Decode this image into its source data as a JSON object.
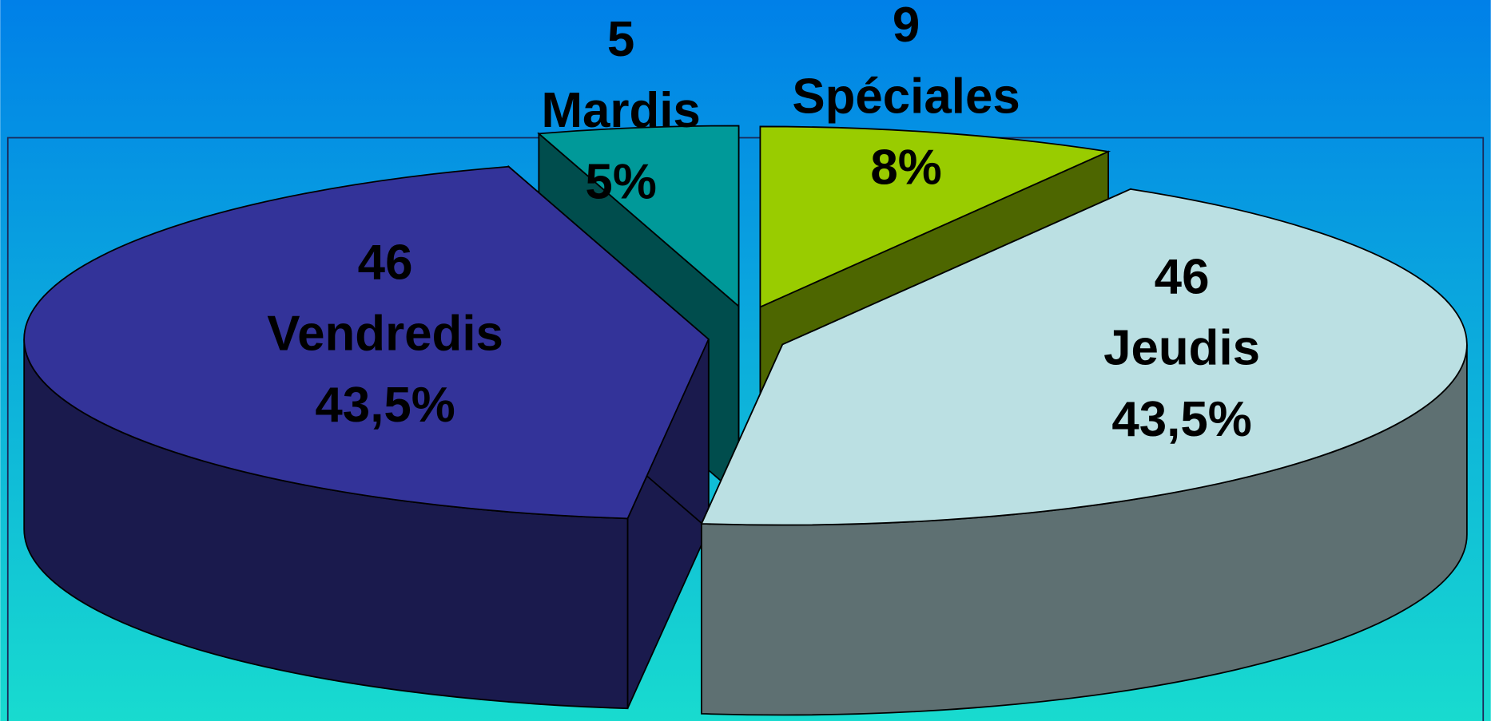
{
  "chart_data": {
    "type": "pie3d",
    "categories": [
      "Mardis",
      "Spéciales",
      "Jeudis",
      "Vendredis"
    ],
    "values": [
      5,
      9,
      46,
      46
    ],
    "percentages": [
      5,
      8,
      43.5,
      43.5
    ],
    "percentage_labels": [
      "5%",
      "8%",
      "43,5%",
      "43,5%"
    ],
    "colors": [
      "#009999",
      "#99cc00",
      "#bbe0e3",
      "#333399"
    ]
  }
}
